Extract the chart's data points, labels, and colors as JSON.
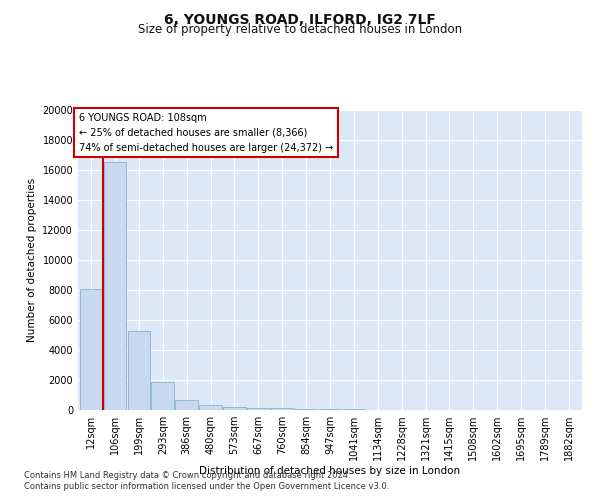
{
  "title1": "6, YOUNGS ROAD, ILFORD, IG2 7LF",
  "title2": "Size of property relative to detached houses in London",
  "xlabel": "Distribution of detached houses by size in London",
  "ylabel": "Number of detached properties",
  "footnote1": "Contains HM Land Registry data © Crown copyright and database right 2024.",
  "footnote2": "Contains public sector information licensed under the Open Government Licence v3.0.",
  "annotation_title": "6 YOUNGS ROAD: 108sqm",
  "annotation_line1": "← 25% of detached houses are smaller (8,366)",
  "annotation_line2": "74% of semi-detached houses are larger (24,372) →",
  "bar_labels": [
    "12sqm",
    "106sqm",
    "199sqm",
    "293sqm",
    "386sqm",
    "480sqm",
    "573sqm",
    "667sqm",
    "760sqm",
    "854sqm",
    "947sqm",
    "1041sqm",
    "1134sqm",
    "1228sqm",
    "1321sqm",
    "1415sqm",
    "1508sqm",
    "1602sqm",
    "1695sqm",
    "1789sqm",
    "1882sqm"
  ],
  "bar_values": [
    8100,
    16500,
    5300,
    1850,
    700,
    320,
    210,
    160,
    120,
    80,
    55,
    40,
    30,
    20,
    15,
    10,
    8,
    6,
    5,
    4,
    3
  ],
  "bar_color": "#c8d8ee",
  "bar_edge_color": "#7aaad0",
  "vline_x": 0.5,
  "vline_color": "#cc0000",
  "ylim": [
    0,
    20000
  ],
  "yticks": [
    0,
    2000,
    4000,
    6000,
    8000,
    10000,
    12000,
    14000,
    16000,
    18000,
    20000
  ],
  "bg_color": "#dce8f5",
  "plot_bg_color": "#dce8f5",
  "fig_bg_color": "#ffffff",
  "grid_color": "#ffffff",
  "annotation_box_color": "#ffffff",
  "annotation_box_edge": "#cc0000",
  "title_fontsize": 10,
  "subtitle_fontsize": 8.5,
  "axis_label_fontsize": 7.5,
  "tick_fontsize": 7,
  "annotation_fontsize": 7,
  "footnote_fontsize": 6
}
